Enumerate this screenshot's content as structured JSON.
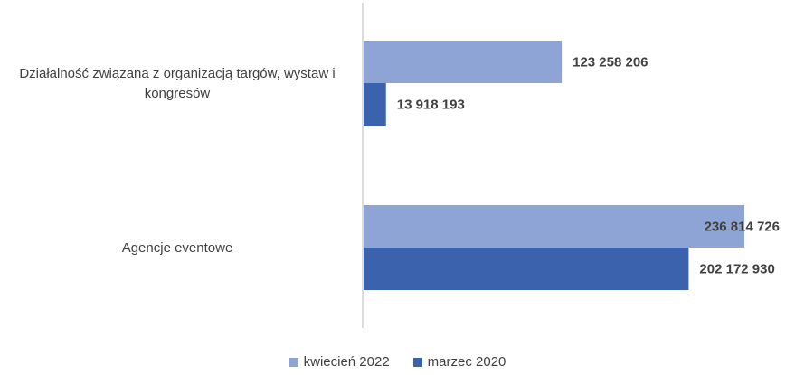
{
  "chart_data": {
    "type": "bar",
    "orientation": "horizontal",
    "categories": [
      [
        "Działalność związana z organizacją targów, wystaw i",
        "kongresów"
      ],
      [
        "Agencje eventowe"
      ]
    ],
    "series": [
      {
        "name": "kwiecień 2022",
        "color": "#8EA4D4",
        "values": [
          123258206,
          236814726
        ],
        "labels": [
          "123 258 206",
          "236 814 726"
        ]
      },
      {
        "name": "marzec 2020",
        "color": "#3A62AD",
        "values": [
          13918193,
          202172930
        ],
        "labels": [
          "13 918 193",
          "202 172 930"
        ]
      }
    ],
    "legend_position": "bottom",
    "grid": false,
    "axis_visible": false
  }
}
